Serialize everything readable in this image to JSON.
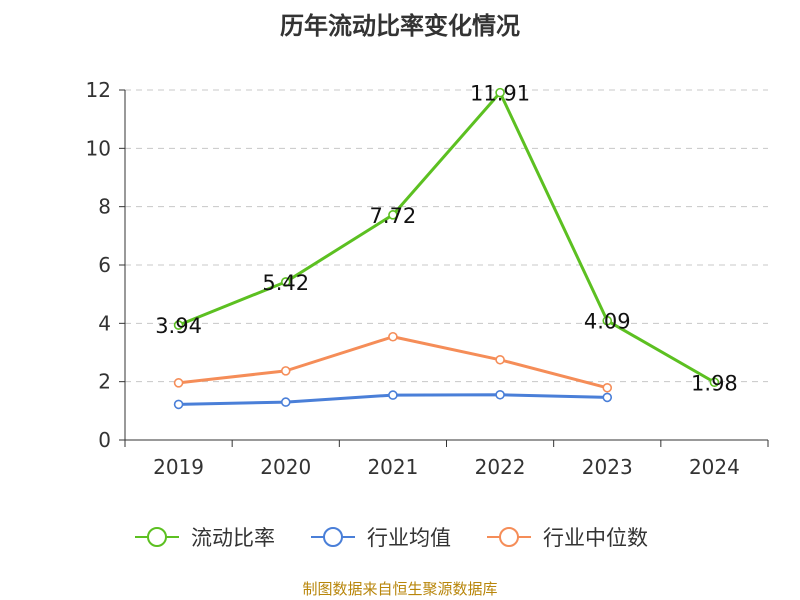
{
  "chart_data": {
    "type": "line",
    "title": "历年流动比率变化情况",
    "categories": [
      "2019",
      "2020",
      "2021",
      "2022",
      "2023",
      "2024"
    ],
    "ylim": [
      0,
      12
    ],
    "yticks": [
      "0",
      "2",
      "4",
      "6",
      "8",
      "10",
      "12"
    ],
    "grid": true,
    "legend_position": "bottom",
    "series": [
      {
        "name": "流动比率",
        "color": "#5cc021",
        "values": [
          3.94,
          5.42,
          7.72,
          11.91,
          4.09,
          1.98
        ],
        "labels": [
          "3.94",
          "5.42",
          "7.72",
          "11.91",
          "4.09",
          "1.98"
        ]
      },
      {
        "name": "行业均值",
        "color": "#4a7fd8",
        "values": [
          1.22,
          1.3,
          1.54,
          1.55,
          1.46,
          null
        ]
      },
      {
        "name": "行业中位数",
        "color": "#f58d58",
        "values": [
          1.96,
          2.37,
          3.54,
          2.75,
          1.79,
          null
        ]
      }
    ]
  },
  "source": "制图数据来自恒生聚源数据库"
}
